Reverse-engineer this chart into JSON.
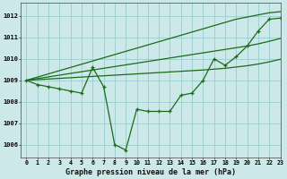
{
  "title": "Graphe pression niveau de la mer (hPa)",
  "background_color": "#cce8e8",
  "grid_color": "#99cccc",
  "line_color": "#1a6b1a",
  "xlim": [
    -0.5,
    23
  ],
  "ylim": [
    1005.4,
    1012.6
  ],
  "yticks": [
    1006,
    1007,
    1008,
    1009,
    1010,
    1011,
    1012
  ],
  "xticks": [
    0,
    1,
    2,
    3,
    4,
    5,
    6,
    7,
    8,
    9,
    10,
    11,
    12,
    13,
    14,
    15,
    16,
    17,
    18,
    19,
    20,
    21,
    22,
    23
  ],
  "series_zigzag": [
    1009.0,
    1008.8,
    1008.7,
    1008.6,
    1008.5,
    1008.4,
    1009.6,
    1008.7,
    1006.0,
    1005.75,
    1007.65,
    1007.55,
    1007.55,
    1007.55,
    1008.3,
    1008.4,
    1009.0,
    1010.0,
    1009.7,
    1010.1,
    1010.6,
    1011.3,
    1011.85,
    1011.9
  ],
  "series_top": [
    1009.0,
    1009.15,
    1009.3,
    1009.45,
    1009.6,
    1009.75,
    1009.9,
    1010.05,
    1010.2,
    1010.35,
    1010.5,
    1010.65,
    1010.8,
    1010.95,
    1011.1,
    1011.25,
    1011.4,
    1011.55,
    1011.7,
    1011.85,
    1011.95,
    1012.05,
    1012.15,
    1012.2
  ],
  "series_mid": [
    1009.0,
    1009.08,
    1009.16,
    1009.24,
    1009.32,
    1009.4,
    1009.48,
    1009.56,
    1009.64,
    1009.72,
    1009.8,
    1009.88,
    1009.96,
    1010.04,
    1010.12,
    1010.2,
    1010.28,
    1010.36,
    1010.44,
    1010.52,
    1010.6,
    1010.7,
    1010.82,
    1010.95
  ],
  "series_bot": [
    1009.0,
    1009.03,
    1009.06,
    1009.09,
    1009.12,
    1009.15,
    1009.18,
    1009.21,
    1009.24,
    1009.27,
    1009.3,
    1009.33,
    1009.36,
    1009.39,
    1009.42,
    1009.45,
    1009.48,
    1009.52,
    1009.56,
    1009.62,
    1009.68,
    1009.76,
    1009.86,
    1009.98
  ]
}
